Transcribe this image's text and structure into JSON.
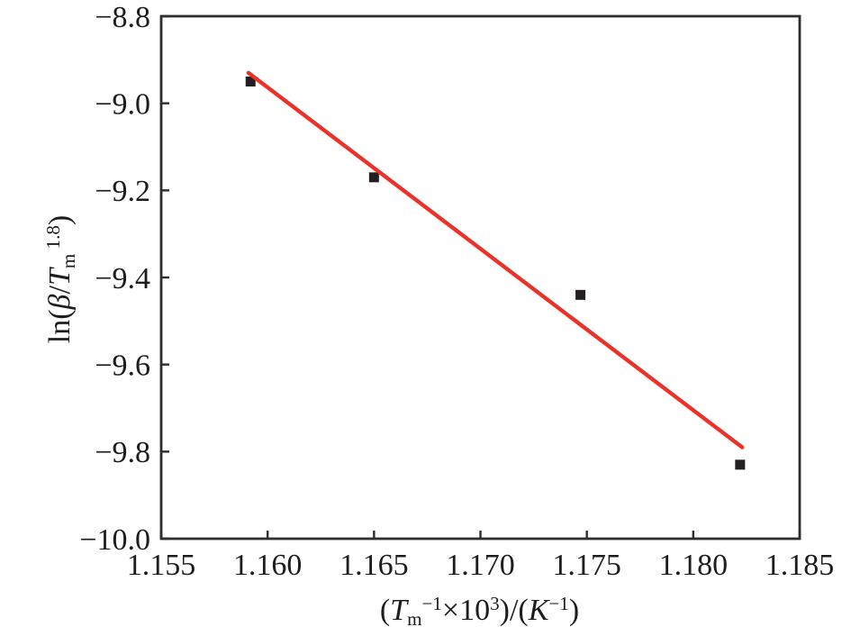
{
  "figure": {
    "background": "#ffffff",
    "text_color": "#1d1d1d"
  },
  "chart_data": {
    "type": "scatter",
    "title": "",
    "xlabel_plain": "(Tm^-1 × 10^3)/(K^-1)",
    "ylabel_plain": "ln(β/Tm^1.8)",
    "xlabel_segments": [
      {
        "t": "(",
        "style": "normal"
      },
      {
        "t": "T",
        "style": "italic"
      },
      {
        "t": "m",
        "style": "sub"
      },
      {
        "t": "−1",
        "style": "sup"
      },
      {
        "t": "×10",
        "style": "normal"
      },
      {
        "t": "3",
        "style": "sup"
      },
      {
        "t": ")/(",
        "style": "normal"
      },
      {
        "t": "K",
        "style": "italic"
      },
      {
        "t": "−1",
        "style": "sup"
      },
      {
        "t": ")",
        "style": "normal"
      }
    ],
    "ylabel_segments": [
      {
        "t": "ln(",
        "style": "normal"
      },
      {
        "t": "β",
        "style": "italic"
      },
      {
        "t": "/",
        "style": "normal"
      },
      {
        "t": "T",
        "style": "italic"
      },
      {
        "t": "m",
        "style": "sub"
      },
      {
        "t": " 1.8",
        "style": "sup"
      },
      {
        "t": ")",
        "style": "normal"
      }
    ],
    "xlim": [
      1.155,
      1.185
    ],
    "ylim": [
      -10.0,
      -8.8
    ],
    "x_ticks": [
      {
        "v": 1.155,
        "label": "1.155"
      },
      {
        "v": 1.16,
        "label": "1.160"
      },
      {
        "v": 1.165,
        "label": "1.165"
      },
      {
        "v": 1.17,
        "label": "1.170"
      },
      {
        "v": 1.175,
        "label": "1.175"
      },
      {
        "v": 1.18,
        "label": "1.180"
      },
      {
        "v": 1.185,
        "label": "1.185"
      }
    ],
    "y_ticks": [
      {
        "v": -8.8,
        "label": "−8.8"
      },
      {
        "v": -9.0,
        "label": "−9.0"
      },
      {
        "v": -9.2,
        "label": "−9.2"
      },
      {
        "v": -9.4,
        "label": "−9.4"
      },
      {
        "v": -9.6,
        "label": "−9.6"
      },
      {
        "v": -9.8,
        "label": "−9.8"
      },
      {
        "v": -10.0,
        "label": "−10.0"
      }
    ],
    "points": [
      {
        "x": 1.1592,
        "y": -8.95
      },
      {
        "x": 1.165,
        "y": -9.17
      },
      {
        "x": 1.1747,
        "y": -9.44
      },
      {
        "x": 1.1822,
        "y": -9.83
      }
    ],
    "fit_line": {
      "x1": 1.1591,
      "y1": -8.93,
      "x2": 1.1823,
      "y2": -9.79
    },
    "marker": {
      "shape": "square",
      "size": 11,
      "color": "#242021"
    },
    "line_color": "#e8332a",
    "axis_color": "#2e2e2e",
    "grid": false,
    "legend": null
  }
}
